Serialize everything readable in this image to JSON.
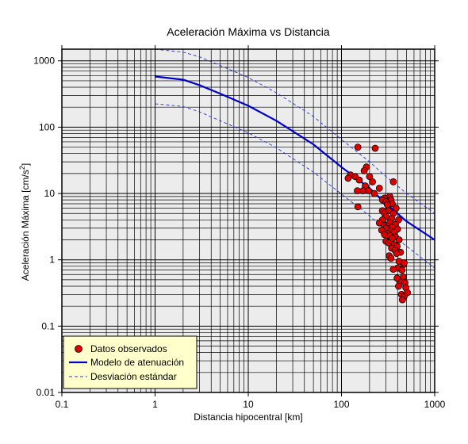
{
  "chart_data": {
    "type": "scatter",
    "title": "Aceleración Máxima vs Distancia",
    "xlabel": "Distancia hipocentral [km]",
    "ylabel_main": "Aceleración Máxima [cm/s",
    "ylabel_sup": "2",
    "ylabel_end": "]",
    "x_scale": "log",
    "y_scale": "log",
    "xlim": [
      0.1,
      1000
    ],
    "ylim": [
      0.01,
      1500
    ],
    "x_ticks": [
      {
        "value": 0.1,
        "label": "0.1"
      },
      {
        "value": 1,
        "label": "1"
      },
      {
        "value": 10,
        "label": "10"
      },
      {
        "value": 100,
        "label": "100"
      },
      {
        "value": 1000,
        "label": "1000"
      }
    ],
    "y_ticks": [
      {
        "value": 0.01,
        "label": "0.01"
      },
      {
        "value": 0.1,
        "label": "0.1"
      },
      {
        "value": 1,
        "label": "1"
      },
      {
        "value": 10,
        "label": "10"
      },
      {
        "value": 100,
        "label": "100"
      },
      {
        "value": 1000,
        "label": "1000"
      }
    ],
    "grid": true,
    "legend_position": "bottom-left",
    "colors": {
      "points": "#e00000",
      "model": "#0000cc",
      "std": "#2233dd",
      "plot_bg": "#ececec",
      "legend_bg": "#ffffcc",
      "grid": "#000000"
    },
    "series": [
      {
        "name": "Datos observados",
        "kind": "scatter",
        "points": [
          [
            150,
            50
          ],
          [
            230,
            48
          ],
          [
            185,
            25
          ],
          [
            175,
            22
          ],
          [
            125,
            19
          ],
          [
            140,
            18
          ],
          [
            118,
            17
          ],
          [
            200,
            18
          ],
          [
            155,
            16
          ],
          [
            215,
            15
          ],
          [
            360,
            15
          ],
          [
            180,
            13
          ],
          [
            255,
            12
          ],
          [
            148,
            11
          ],
          [
            170,
            11
          ],
          [
            195,
            11
          ],
          [
            225,
            10
          ],
          [
            330,
            9
          ],
          [
            290,
            8.5
          ],
          [
            275,
            8
          ],
          [
            340,
            8
          ],
          [
            300,
            7.5
          ],
          [
            350,
            7
          ],
          [
            310,
            6.8
          ],
          [
            150,
            6.3
          ],
          [
            385,
            6
          ],
          [
            275,
            5.5
          ],
          [
            320,
            5.5
          ],
          [
            290,
            5
          ],
          [
            360,
            5
          ],
          [
            300,
            4.5
          ],
          [
            345,
            4.2
          ],
          [
            275,
            4
          ],
          [
            410,
            4
          ],
          [
            255,
            3.6
          ],
          [
            330,
            3.6
          ],
          [
            380,
            3.4
          ],
          [
            290,
            3.3
          ],
          [
            315,
            3.2
          ],
          [
            350,
            3.1
          ],
          [
            300,
            3.0
          ],
          [
            400,
            2.9
          ],
          [
            270,
            2.8
          ],
          [
            340,
            2.7
          ],
          [
            365,
            2.6
          ],
          [
            310,
            2.5
          ],
          [
            290,
            2.4
          ],
          [
            330,
            2.3
          ],
          [
            380,
            2.2
          ],
          [
            350,
            2.1
          ],
          [
            415,
            2.0
          ],
          [
            300,
            1.9
          ],
          [
            320,
            1.8
          ],
          [
            365,
            1.7
          ],
          [
            395,
            1.6
          ],
          [
            345,
            1.5
          ],
          [
            375,
            1.4
          ],
          [
            430,
            1.3
          ],
          [
            390,
            1.25
          ],
          [
            325,
            1.15
          ],
          [
            340,
            1.05
          ],
          [
            415,
            0.95
          ],
          [
            465,
            0.85
          ],
          [
            400,
            0.75
          ],
          [
            445,
            0.7
          ],
          [
            360,
            0.72
          ],
          [
            460,
            0.55
          ],
          [
            420,
            0.48
          ],
          [
            480,
            0.45
          ],
          [
            410,
            0.4
          ],
          [
            490,
            0.38
          ],
          [
            440,
            0.3
          ],
          [
            470,
            0.28
          ],
          [
            510,
            0.32
          ],
          [
            450,
            0.25
          ],
          [
            470,
            0.9
          ],
          [
            395,
            0.53
          ]
        ]
      },
      {
        "name": "Modelo de atenuación",
        "kind": "line",
        "points": [
          [
            1,
            580
          ],
          [
            2,
            520
          ],
          [
            3,
            430
          ],
          [
            5,
            320
          ],
          [
            10,
            210
          ],
          [
            20,
            125
          ],
          [
            50,
            55
          ],
          [
            100,
            25
          ],
          [
            200,
            12
          ],
          [
            300,
            7
          ],
          [
            500,
            3.8
          ],
          [
            1000,
            2
          ]
        ]
      },
      {
        "name": "Desviación estándar",
        "kind": "dashed",
        "bands": [
          [
            [
              1,
              1500
            ],
            [
              2,
              1350
            ],
            [
              3,
              1150
            ],
            [
              5,
              850
            ],
            [
              10,
              560
            ],
            [
              20,
              330
            ],
            [
              50,
              145
            ],
            [
              100,
              65
            ],
            [
              200,
              30
            ],
            [
              300,
              18
            ],
            [
              500,
              10
            ],
            [
              1000,
              5
            ]
          ],
          [
            [
              1,
              225
            ],
            [
              2,
              205
            ],
            [
              3,
              170
            ],
            [
              5,
              125
            ],
            [
              10,
              82
            ],
            [
              20,
              49
            ],
            [
              50,
              21
            ],
            [
              100,
              9.8
            ],
            [
              200,
              4.6
            ],
            [
              300,
              2.8
            ],
            [
              500,
              1.6
            ],
            [
              1000,
              0.75
            ]
          ]
        ]
      }
    ]
  }
}
